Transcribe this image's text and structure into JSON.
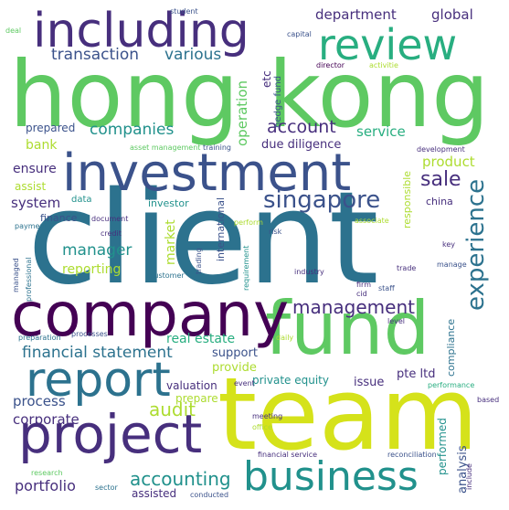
{
  "palette": {
    "purple": "#440154",
    "indigo": "#472f7d",
    "blue": "#3b528b",
    "steel": "#2c728e",
    "teal": "#21918c",
    "green": "#28ae80",
    "lime": "#5ec962",
    "yellowgreen": "#addc30",
    "yellow": "#d5e21a"
  },
  "words": [
    {
      "text": "client"
    },
    {
      "text": "hong kong"
    },
    {
      "text": "team"
    },
    {
      "text": "fund"
    },
    {
      "text": "company"
    },
    {
      "text": "investment"
    },
    {
      "text": "including"
    },
    {
      "text": "report"
    },
    {
      "text": "project"
    },
    {
      "text": "business"
    },
    {
      "text": "review"
    },
    {
      "text": "singapore"
    },
    {
      "text": "experience"
    },
    {
      "text": "management"
    },
    {
      "text": "accounting"
    },
    {
      "text": "audit"
    },
    {
      "text": "sale"
    },
    {
      "text": "account"
    },
    {
      "text": "companies"
    },
    {
      "text": "department"
    },
    {
      "text": "global"
    },
    {
      "text": "transaction"
    },
    {
      "text": "various"
    },
    {
      "text": "financial statement"
    },
    {
      "text": "process"
    },
    {
      "text": "corporate"
    },
    {
      "text": "portfolio"
    },
    {
      "text": "manager"
    },
    {
      "text": "service"
    },
    {
      "text": "product"
    },
    {
      "text": "system"
    },
    {
      "text": "ensure"
    },
    {
      "text": "bank"
    },
    {
      "text": "prepared"
    },
    {
      "text": "operation"
    },
    {
      "text": "due diligence"
    },
    {
      "text": "reporting"
    },
    {
      "text": "market"
    },
    {
      "text": "real estate"
    },
    {
      "text": "support"
    },
    {
      "text": "provide"
    },
    {
      "text": "private equity"
    },
    {
      "text": "pte ltd"
    },
    {
      "text": "issue"
    },
    {
      "text": "valuation"
    },
    {
      "text": "prepare"
    },
    {
      "text": "assisted"
    },
    {
      "text": "analysis"
    },
    {
      "text": "performed"
    },
    {
      "text": "compliance"
    },
    {
      "text": "responsible"
    },
    {
      "text": "international"
    },
    {
      "text": "etc"
    },
    {
      "text": "hedge fund"
    },
    {
      "text": "assist"
    },
    {
      "text": "finance"
    },
    {
      "text": "data"
    },
    {
      "text": "investor"
    },
    {
      "text": "china"
    },
    {
      "text": "student"
    },
    {
      "text": "deal"
    },
    {
      "text": "capital"
    },
    {
      "text": "director"
    },
    {
      "text": "activitie"
    },
    {
      "text": "asset management"
    },
    {
      "text": "training"
    },
    {
      "text": "development"
    },
    {
      "text": "document"
    },
    {
      "text": "payment"
    },
    {
      "text": "credit"
    },
    {
      "text": "risk"
    },
    {
      "text": "perform"
    },
    {
      "text": "associate"
    },
    {
      "text": "key"
    },
    {
      "text": "professional"
    },
    {
      "text": "managed"
    },
    {
      "text": "customer"
    },
    {
      "text": "trading"
    },
    {
      "text": "requirement"
    },
    {
      "text": "industry"
    },
    {
      "text": "trade"
    },
    {
      "text": "firm"
    },
    {
      "text": "cid"
    },
    {
      "text": "staff"
    },
    {
      "text": "manage"
    },
    {
      "text": "level"
    },
    {
      "text": "preparation"
    },
    {
      "text": "processes"
    },
    {
      "text": "daily"
    },
    {
      "text": "event"
    },
    {
      "text": "performance"
    },
    {
      "text": "based"
    },
    {
      "text": "meeting"
    },
    {
      "text": "office"
    },
    {
      "text": "financial service"
    },
    {
      "text": "reconciliation"
    },
    {
      "text": "research"
    },
    {
      "text": "sector"
    },
    {
      "text": "conducted"
    },
    {
      "text": "include"
    }
  ]
}
